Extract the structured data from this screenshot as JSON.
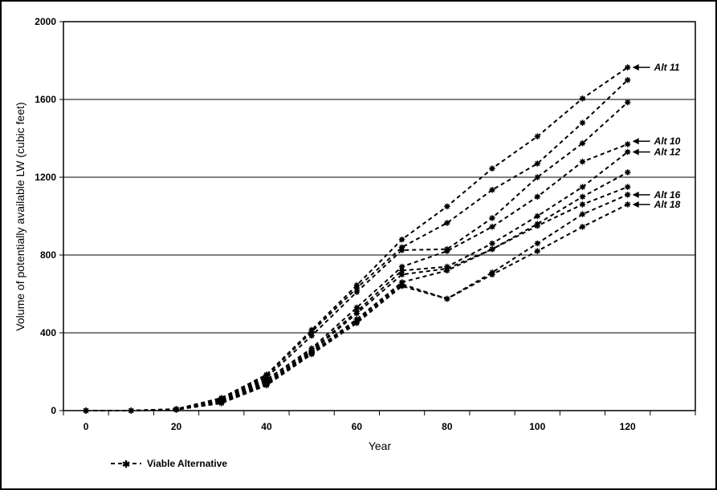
{
  "chart_data": {
    "type": "line",
    "xlabel": "Year",
    "ylabel": "Volume of potentially available LW (cubic feet)",
    "xlim": [
      -5,
      135
    ],
    "ylim": [
      0,
      2000
    ],
    "xticks": [
      0,
      20,
      40,
      60,
      80,
      100,
      120
    ],
    "yticks": [
      0,
      400,
      800,
      1200,
      1600,
      2000
    ],
    "grid": "horizontal",
    "legend": {
      "placement": "bottom-left",
      "label": "Viable Alternative"
    },
    "series": [
      {
        "x": [
          0,
          10,
          20,
          30,
          40,
          50,
          60,
          70,
          80,
          90,
          100,
          110,
          120
        ],
        "y": [
          0,
          0,
          8,
          65,
          185,
          415,
          645,
          880,
          1050,
          1245,
          1410,
          1605,
          1765
        ]
      },
      {
        "x": [
          0,
          10,
          20,
          30,
          40,
          50,
          60,
          70,
          80,
          90,
          100,
          110,
          120
        ],
        "y": [
          0,
          0,
          8,
          60,
          180,
          405,
          630,
          840,
          965,
          1135,
          1270,
          1480,
          1700
        ]
      },
      {
        "x": [
          0,
          10,
          20,
          30,
          40,
          50,
          60,
          70,
          80,
          90,
          100,
          110,
          120
        ],
        "y": [
          0,
          0,
          7,
          55,
          170,
          385,
          610,
          825,
          830,
          990,
          1200,
          1375,
          1585
        ]
      },
      {
        "x": [
          0,
          10,
          20,
          30,
          40,
          50,
          60,
          70,
          80,
          90,
          100,
          110,
          120
        ],
        "y": [
          0,
          0,
          7,
          50,
          160,
          320,
          530,
          740,
          820,
          945,
          1100,
          1280,
          1370
        ]
      },
      {
        "x": [
          0,
          10,
          20,
          30,
          40,
          50,
          60,
          70,
          80,
          90,
          100,
          110,
          120
        ],
        "y": [
          0,
          0,
          6,
          45,
          150,
          310,
          510,
          720,
          740,
          860,
          1000,
          1150,
          1330
        ]
      },
      {
        "x": [
          0,
          10,
          20,
          30,
          40,
          50,
          60,
          70,
          80,
          90,
          100,
          110,
          120
        ],
        "y": [
          0,
          0,
          6,
          45,
          145,
          305,
          500,
          700,
          730,
          830,
          960,
          1100,
          1225
        ]
      },
      {
        "x": [
          0,
          10,
          20,
          30,
          40,
          50,
          60,
          70,
          80,
          90,
          100,
          110,
          120
        ],
        "y": [
          0,
          0,
          5,
          40,
          140,
          300,
          470,
          660,
          720,
          830,
          950,
          1060,
          1150
        ]
      },
      {
        "x": [
          0,
          10,
          20,
          30,
          40,
          50,
          60,
          70,
          80,
          90,
          100,
          110,
          120
        ],
        "y": [
          0,
          0,
          5,
          40,
          135,
          295,
          460,
          650,
          575,
          710,
          860,
          1010,
          1110
        ]
      },
      {
        "x": [
          0,
          10,
          20,
          30,
          40,
          50,
          60,
          70,
          80,
          90,
          100,
          110,
          120
        ],
        "y": [
          0,
          0,
          5,
          38,
          130,
          290,
          450,
          640,
          575,
          700,
          820,
          945,
          1060
        ]
      }
    ],
    "annotations": [
      {
        "text": "Alt 11",
        "x": 120,
        "y": 1765
      },
      {
        "text": "Alt 10",
        "x": 120,
        "y": 1385
      },
      {
        "text": "Alt 12",
        "x": 120,
        "y": 1330
      },
      {
        "text": "Alt 16",
        "x": 120,
        "y": 1110
      },
      {
        "text": "Alt 18",
        "x": 120,
        "y": 1060
      }
    ]
  }
}
